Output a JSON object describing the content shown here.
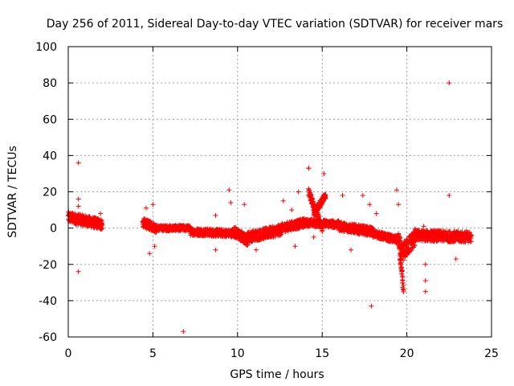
{
  "chart_data": {
    "type": "scatter",
    "title": "Day 256 of 2011, Sidereal Day-to-day VTEC variation (SDTVAR) for receiver mars",
    "xlabel": "GPS time / hours",
    "ylabel": "SDTVAR / TECUs",
    "xlim": [
      0,
      25
    ],
    "ylim": [
      -60,
      100
    ],
    "xticks": [
      0,
      5,
      10,
      15,
      20,
      25
    ],
    "yticks": [
      -60,
      -40,
      -20,
      0,
      20,
      40,
      60,
      80,
      100
    ],
    "grid": true,
    "marker": "+",
    "color": "#ff0000",
    "segments": [
      {
        "x": [
          0.0,
          2.0
        ],
        "y": [
          6,
          2
        ],
        "spread": 3
      },
      {
        "x": [
          4.4,
          5.2
        ],
        "y": [
          3,
          0
        ],
        "spread": 2.5
      },
      {
        "x": [
          5.2,
          7.2
        ],
        "y": [
          0,
          0
        ],
        "spread": 1.5
      },
      {
        "x": [
          7.2,
          9.8
        ],
        "y": [
          -2,
          -3
        ],
        "spread": 2
      },
      {
        "x": [
          9.8,
          10.6
        ],
        "y": [
          -2,
          -7
        ],
        "spread": 3
      },
      {
        "x": [
          10.6,
          12.6
        ],
        "y": [
          -5,
          -1
        ],
        "spread": 3
      },
      {
        "x": [
          12.6,
          14.0
        ],
        "y": [
          0,
          3
        ],
        "spread": 2.5
      },
      {
        "x": [
          14.0,
          16.0
        ],
        "y": [
          3,
          2
        ],
        "spread": 2
      },
      {
        "x": [
          16.0,
          18.0
        ],
        "y": [
          1,
          -2
        ],
        "spread": 2.5
      },
      {
        "x": [
          18.0,
          19.6
        ],
        "y": [
          -3,
          -7
        ],
        "spread": 2
      },
      {
        "x": [
          19.6,
          20.5
        ],
        "y": [
          -15,
          -5
        ],
        "spread": 5
      },
      {
        "x": [
          20.5,
          23.8
        ],
        "y": [
          -4,
          -5
        ],
        "spread": 3
      }
    ],
    "features": [
      {
        "x": [
          14.2,
          15.0
        ],
        "y": [
          20,
          0
        ],
        "spread": 2
      },
      {
        "x": [
          14.5,
          15.2
        ],
        "y": [
          8,
          18
        ],
        "spread": 2
      },
      {
        "x": [
          19.5,
          19.8
        ],
        "y": [
          -5,
          -34
        ],
        "spread": 3
      }
    ],
    "outliers": [
      {
        "x": 0.6,
        "y": 36
      },
      {
        "x": 0.6,
        "y": 16
      },
      {
        "x": 0.6,
        "y": 12
      },
      {
        "x": 0.6,
        "y": -24
      },
      {
        "x": 1.9,
        "y": 8
      },
      {
        "x": 4.6,
        "y": 11
      },
      {
        "x": 5.0,
        "y": 13
      },
      {
        "x": 4.8,
        "y": -14
      },
      {
        "x": 5.1,
        "y": -10
      },
      {
        "x": 6.8,
        "y": -57
      },
      {
        "x": 8.7,
        "y": 7
      },
      {
        "x": 8.7,
        "y": -12
      },
      {
        "x": 9.5,
        "y": 21
      },
      {
        "x": 9.6,
        "y": 14
      },
      {
        "x": 10.4,
        "y": 13
      },
      {
        "x": 11.1,
        "y": -12
      },
      {
        "x": 12.7,
        "y": 15
      },
      {
        "x": 13.2,
        "y": 10
      },
      {
        "x": 13.4,
        "y": -10
      },
      {
        "x": 13.6,
        "y": 20
      },
      {
        "x": 14.2,
        "y": 33
      },
      {
        "x": 14.2,
        "y": 33
      },
      {
        "x": 14.5,
        "y": -5
      },
      {
        "x": 15.1,
        "y": 30
      },
      {
        "x": 16.2,
        "y": 18
      },
      {
        "x": 16.7,
        "y": -12
      },
      {
        "x": 17.4,
        "y": 18
      },
      {
        "x": 17.8,
        "y": 13
      },
      {
        "x": 17.9,
        "y": -43
      },
      {
        "x": 18.2,
        "y": 8
      },
      {
        "x": 19.4,
        "y": 21
      },
      {
        "x": 19.5,
        "y": 13
      },
      {
        "x": 21.0,
        "y": 1
      },
      {
        "x": 21.1,
        "y": -20
      },
      {
        "x": 21.1,
        "y": -29
      },
      {
        "x": 21.1,
        "y": -35
      },
      {
        "x": 22.5,
        "y": 80
      },
      {
        "x": 22.5,
        "y": 18
      },
      {
        "x": 22.9,
        "y": -17
      }
    ]
  }
}
